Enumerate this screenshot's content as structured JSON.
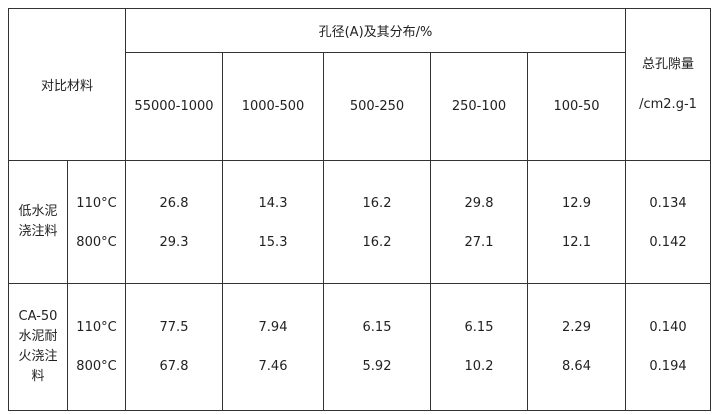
{
  "table": {
    "corner": "对比材料",
    "pore_header": "孔径(A)及其分布/%",
    "total_header": [
      "总孔隙量",
      "/cm2.g-1"
    ],
    "ranges": [
      "55000-1000",
      "1000-500",
      "500-250",
      "250-100",
      "100-50"
    ],
    "groups": [
      {
        "label": [
          "低水泥",
          "浇注料"
        ],
        "rows": [
          {
            "temp": "110°C",
            "values": [
              "26.8",
              "14.3",
              "16.2",
              "29.8",
              "12.9"
            ],
            "total": "0.134"
          },
          {
            "temp": "800°C",
            "values": [
              "29.3",
              "15.3",
              "16.2",
              "27.1",
              "12.1"
            ],
            "total": "0.142"
          }
        ]
      },
      {
        "label": [
          "CA-50",
          "水泥耐",
          "火浇注",
          "料"
        ],
        "rows": [
          {
            "temp": "110°C",
            "values": [
              "77.5",
              "7.94",
              "6.15",
              "6.15",
              "2.29"
            ],
            "total": "0.140"
          },
          {
            "temp": "800°C",
            "values": [
              "67.8",
              "7.46",
              "5.92",
              "10.2",
              "8.64"
            ],
            "total": "0.194"
          }
        ]
      }
    ]
  }
}
